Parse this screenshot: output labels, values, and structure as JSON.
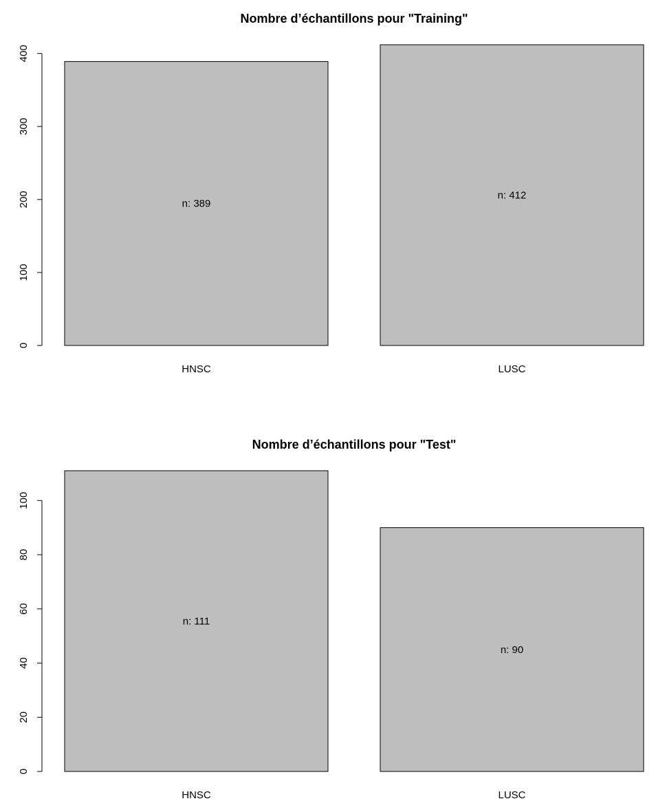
{
  "chart_data": [
    {
      "type": "bar",
      "title": "Nombre d’échantillons pour \"Training\"",
      "categories": [
        "HNSC",
        "LUSC"
      ],
      "values": [
        389,
        412
      ],
      "data_labels": [
        "n: 389",
        "n: 412"
      ],
      "yticks": [
        0,
        100,
        200,
        300,
        400
      ],
      "ylim": [
        0,
        412
      ],
      "bar_color": "#bebebe",
      "grid": false
    },
    {
      "type": "bar",
      "title": "Nombre d’échantillons pour \"Test\"",
      "categories": [
        "HNSC",
        "LUSC"
      ],
      "values": [
        111,
        90
      ],
      "data_labels": [
        "n: 111",
        "n: 90"
      ],
      "yticks": [
        0,
        20,
        40,
        60,
        80,
        100
      ],
      "ylim": [
        0,
        111
      ],
      "bar_color": "#bebebe",
      "grid": false
    }
  ]
}
